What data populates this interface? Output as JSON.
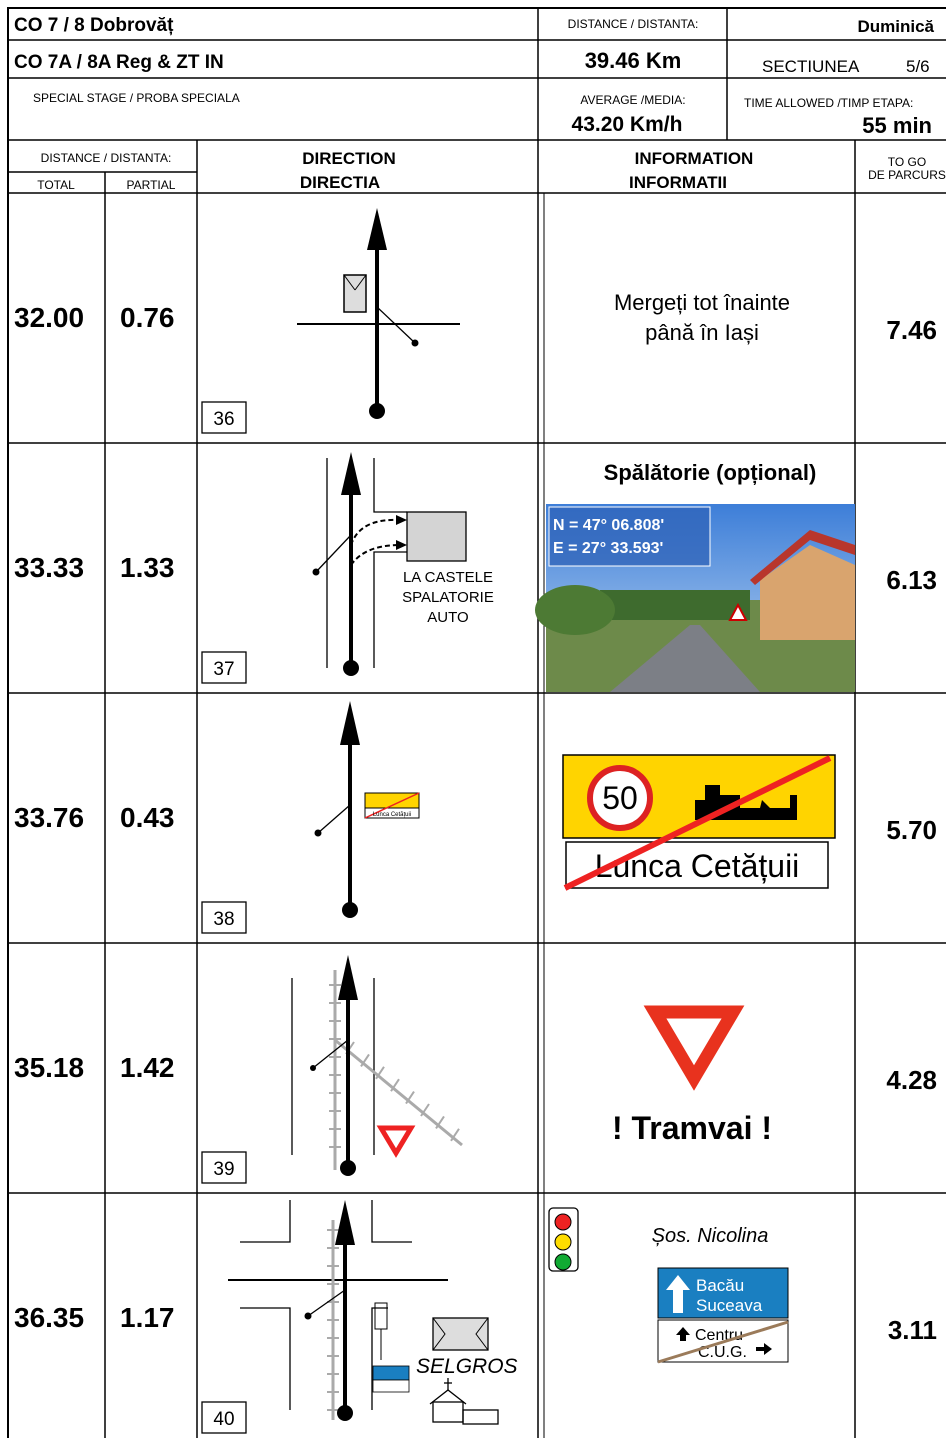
{
  "header": {
    "title1": "CO 7 / 8 Dobrovăț",
    "title2": "CO 7A / 8A Reg & ZT IN",
    "stage": "SPECIAL STAGE / PROBA SPECIALA",
    "distance_label": "DISTANCE / DISTANTA:",
    "distance": "39.46 Km",
    "day": "Duminică",
    "section_label": "SECTIUNEA",
    "section": "5/6",
    "average_label": "AVERAGE /MEDIA:",
    "average": "43.20 Km/h",
    "time_label": "TIME ALLOWED /TIMP ETAPA:",
    "time": "55 min"
  },
  "columns": {
    "distance": "DISTANCE / DISTANTA:",
    "total": "TOTAL",
    "partial": "PARTIAL",
    "direction": [
      "DIRECTION",
      "DIRECTIA"
    ],
    "information": [
      "INFORMATION",
      "INFORMATII"
    ],
    "to_go": [
      "TO GO",
      "DE PARCURS"
    ]
  },
  "rows": [
    {
      "total": "32.00",
      "partial": "0.76",
      "box": "36",
      "to_go": "7.46",
      "info": {
        "lines": [
          "Mergeți tot înainte",
          "până în Iași"
        ]
      }
    },
    {
      "total": "33.33",
      "partial": "1.33",
      "box": "37",
      "to_go": "6.13",
      "direction_text": [
        "LA CASTELE",
        "SPALATORIE",
        "AUTO"
      ],
      "info": {
        "title": "Spălătorie (opțional)",
        "coords": [
          "N =  47° 06.808'",
          "E =  27° 33.593'"
        ]
      }
    },
    {
      "total": "33.76",
      "partial": "0.43",
      "box": "38",
      "to_go": "5.70",
      "info": {
        "speed": "50",
        "place": "Lunca Cetățuii"
      }
    },
    {
      "total": "35.18",
      "partial": "1.42",
      "box": "39",
      "to_go": "4.28",
      "info": {
        "text": "! Tramvai !"
      }
    },
    {
      "total": "36.35",
      "partial": "1.17",
      "box": "40",
      "to_go": "3.11",
      "direction_text": "SELGROS",
      "info": {
        "street": "Șos. Nicolina",
        "sign": [
          "Bacău",
          "Suceava"
        ],
        "local": [
          "Centru",
          "C.U.G."
        ]
      }
    }
  ]
}
